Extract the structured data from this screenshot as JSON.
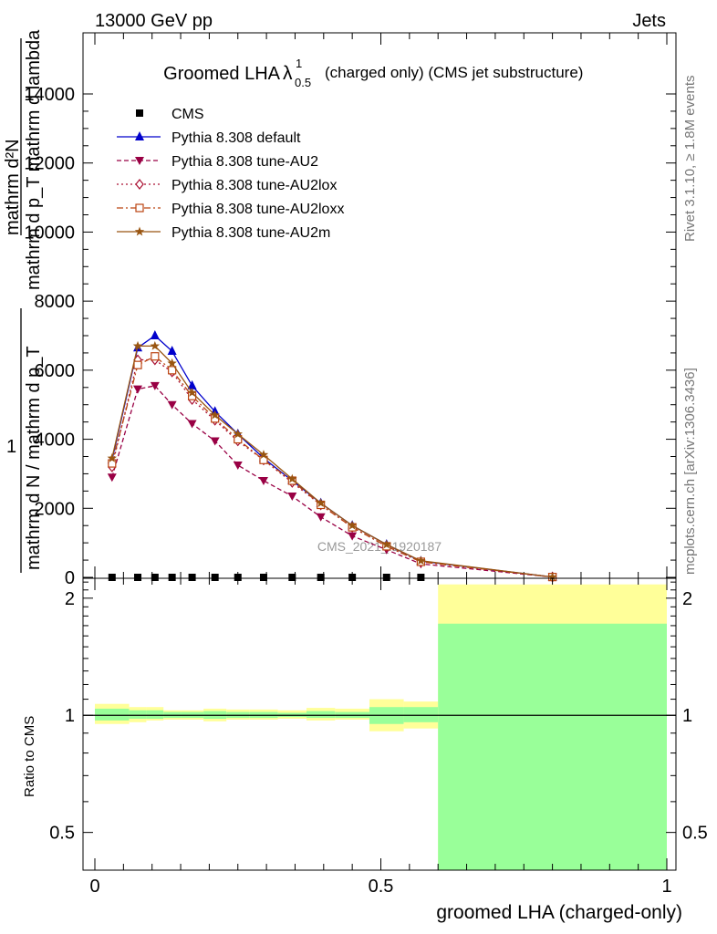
{
  "header": {
    "energy_label": "13000 GeV pp",
    "process_label": "Jets"
  },
  "side_labels": {
    "rivet": "Rivet 3.1.10, ≥ 1.8M events",
    "mcplots": "mcplots.cern.ch [arXiv:1306.3436]"
  },
  "watermark": "CMS_2021_I1920187",
  "colors": {
    "cms": "#000000",
    "default": "#0000cc",
    "au2": "#990044",
    "au2lox": "#aa1133",
    "au2loxx": "#bb4411",
    "au2m": "#995511",
    "band_outer": "#ffff99",
    "band_inner": "#99ff99"
  },
  "chart_data": [
    {
      "type": "line",
      "title_main": "Groomed LHA",
      "title_symbol": "λ",
      "title_sup": "1",
      "title_sub": "0.5",
      "title_rest": "(charged only) (CMS jet substructure)",
      "ylabel_top": "mathrm d²N",
      "ylabel_frac": "mathrm d p_T mathrm d lambda",
      "ylabel_one": "1",
      "ylabel_bottom": "mathrm d N / mathrm d p_T",
      "xlim": [
        0,
        1
      ],
      "ylim": [
        0,
        14000
      ],
      "yticks": [
        0,
        2000,
        4000,
        6000,
        8000,
        10000,
        12000,
        14000
      ],
      "ytick_labels": [
        "0",
        "2000",
        "4000",
        "6000",
        "8000",
        "10000",
        "12000",
        "14000"
      ],
      "x": [
        0.03,
        0.075,
        0.105,
        0.135,
        0.17,
        0.21,
        0.25,
        0.295,
        0.345,
        0.395,
        0.45,
        0.51,
        0.57,
        0.8
      ],
      "series": [
        {
          "name": "CMS",
          "key": "cms",
          "marker": "square",
          "dash": "",
          "values": [
            0,
            0,
            0,
            0,
            0,
            0,
            0,
            0,
            0,
            0,
            0,
            0,
            0,
            0
          ]
        },
        {
          "name": "Pythia 8.308 default",
          "key": "default",
          "marker": "triangle-up",
          "dash": "",
          "values": [
            3400,
            6650,
            7000,
            6550,
            5550,
            4800,
            4150,
            3450,
            2800,
            2150,
            1500,
            950,
            470,
            10
          ]
        },
        {
          "name": "Pythia 8.308 tune-AU2",
          "key": "au2",
          "marker": "triangle-down",
          "dash": "5,3",
          "values": [
            2900,
            5450,
            5550,
            5000,
            4450,
            3950,
            3250,
            2800,
            2350,
            1750,
            1200,
            800,
            390,
            10
          ]
        },
        {
          "name": "Pythia 8.308 tune-AU2lox",
          "key": "au2lox",
          "marker": "diamond",
          "dash": "2,3",
          "values": [
            3200,
            6300,
            6300,
            5950,
            5150,
            4550,
            3950,
            3400,
            2750,
            2100,
            1450,
            900,
            450,
            10
          ]
        },
        {
          "name": "Pythia 8.308 tune-AU2loxx",
          "key": "au2loxx",
          "marker": "square-open",
          "dash": "7,3,2,3",
          "values": [
            3300,
            6150,
            6400,
            6000,
            5250,
            4600,
            4000,
            3400,
            2800,
            2100,
            1450,
            900,
            450,
            10
          ]
        },
        {
          "name": "Pythia 8.308 tune-AU2m",
          "key": "au2m",
          "marker": "star",
          "dash": "",
          "values": [
            3450,
            6700,
            6700,
            6200,
            5350,
            4700,
            4150,
            3550,
            2850,
            2150,
            1500,
            950,
            480,
            10
          ]
        }
      ]
    },
    {
      "type": "area",
      "ylabel": "Ratio to CMS",
      "xlabel": "groomed LHA (charged-only)",
      "scale": "log",
      "ylim": [
        0.4,
        2.25
      ],
      "yticks": [
        0.5,
        1,
        2
      ],
      "ytick_labels": [
        "0.5",
        "1",
        "2"
      ],
      "xticks": [
        0,
        0.5,
        1
      ],
      "xtick_labels": [
        "0",
        "0.5",
        "1"
      ],
      "bins": [
        {
          "lo": 0.0,
          "hi": 0.06,
          "inner": [
            0.97,
            1.04
          ],
          "outer": [
            0.95,
            1.07
          ]
        },
        {
          "lo": 0.06,
          "hi": 0.09,
          "inner": [
            0.98,
            1.03
          ],
          "outer": [
            0.96,
            1.05
          ]
        },
        {
          "lo": 0.09,
          "hi": 0.12,
          "inner": [
            0.98,
            1.03
          ],
          "outer": [
            0.97,
            1.05
          ]
        },
        {
          "lo": 0.12,
          "hi": 0.15,
          "inner": [
            0.985,
            1.02
          ],
          "outer": [
            0.975,
            1.03
          ]
        },
        {
          "lo": 0.15,
          "hi": 0.19,
          "inner": [
            0.985,
            1.02
          ],
          "outer": [
            0.975,
            1.03
          ]
        },
        {
          "lo": 0.19,
          "hi": 0.23,
          "inner": [
            0.98,
            1.025
          ],
          "outer": [
            0.965,
            1.04
          ]
        },
        {
          "lo": 0.23,
          "hi": 0.27,
          "inner": [
            0.985,
            1.02
          ],
          "outer": [
            0.975,
            1.035
          ]
        },
        {
          "lo": 0.27,
          "hi": 0.32,
          "inner": [
            0.985,
            1.02
          ],
          "outer": [
            0.975,
            1.035
          ]
        },
        {
          "lo": 0.32,
          "hi": 0.37,
          "inner": [
            0.99,
            1.015
          ],
          "outer": [
            0.98,
            1.03
          ]
        },
        {
          "lo": 0.37,
          "hi": 0.42,
          "inner": [
            0.985,
            1.025
          ],
          "outer": [
            0.97,
            1.045
          ]
        },
        {
          "lo": 0.42,
          "hi": 0.48,
          "inner": [
            0.985,
            1.02
          ],
          "outer": [
            0.975,
            1.04
          ]
        },
        {
          "lo": 0.48,
          "hi": 0.54,
          "inner": [
            0.95,
            1.05
          ],
          "outer": [
            0.91,
            1.1
          ]
        },
        {
          "lo": 0.54,
          "hi": 0.6,
          "inner": [
            0.96,
            1.05
          ],
          "outer": [
            0.925,
            1.085
          ]
        },
        {
          "lo": 0.6,
          "hi": 1.0,
          "inner": [
            0.4,
            1.72
          ],
          "outer": [
            0.4,
            2.17
          ]
        }
      ]
    }
  ]
}
